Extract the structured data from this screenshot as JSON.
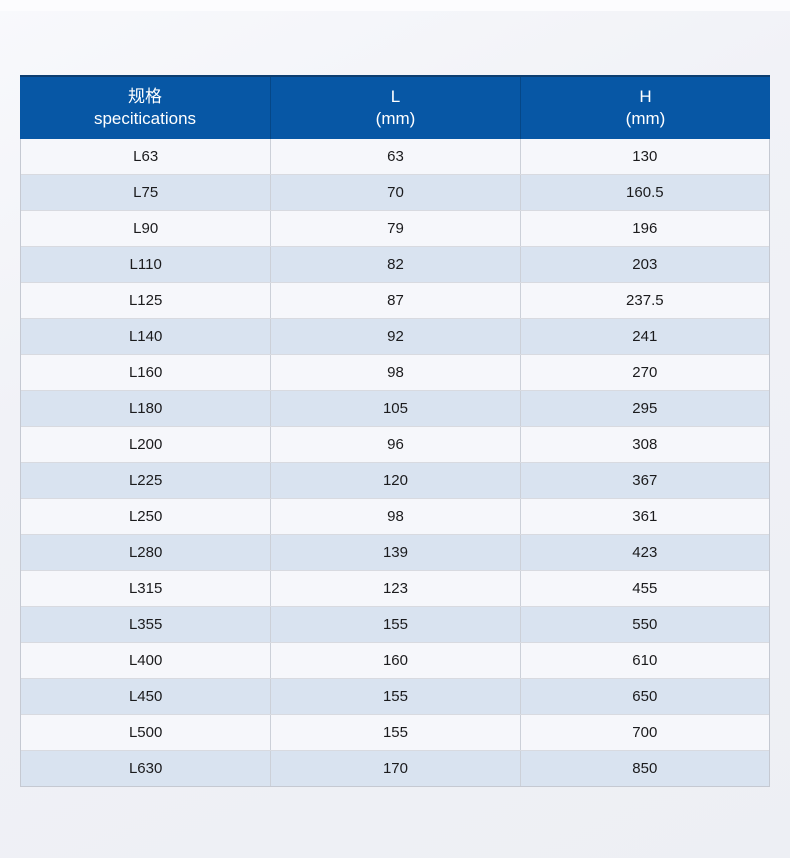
{
  "table": {
    "headers": [
      {
        "line1": "规格",
        "line2": "specitications"
      },
      {
        "line1": "L",
        "line2": "(mm)"
      },
      {
        "line1": "H",
        "line2": "(mm)"
      }
    ],
    "rows": [
      [
        "L63",
        "63",
        "130"
      ],
      [
        "L75",
        "70",
        "160.5"
      ],
      [
        "L90",
        "79",
        "196"
      ],
      [
        "L110",
        "82",
        "203"
      ],
      [
        "L125",
        "87",
        "237.5"
      ],
      [
        "L140",
        "92",
        "241"
      ],
      [
        "L160",
        "98",
        "270"
      ],
      [
        "L180",
        "105",
        "295"
      ],
      [
        "L200",
        "96",
        "308"
      ],
      [
        "L225",
        "120",
        "367"
      ],
      [
        "L250",
        "98",
        "361"
      ],
      [
        "L280",
        "139",
        "423"
      ],
      [
        "L315",
        "123",
        "455"
      ],
      [
        "L355",
        "155",
        "550"
      ],
      [
        "L400",
        "160",
        "610"
      ],
      [
        "L450",
        "155",
        "650"
      ],
      [
        "L500",
        "155",
        "700"
      ],
      [
        "L630",
        "170",
        "850"
      ]
    ]
  },
  "colors": {
    "header_bg": "#0757a5",
    "header_top_border": "#0d3e70",
    "header_text": "#ffffff",
    "row_bg": "#f6f7fb",
    "row_alt_bg": "#d9e3f0",
    "body_text": "#1b1b1d",
    "page_bg": "#f1f2f7"
  }
}
